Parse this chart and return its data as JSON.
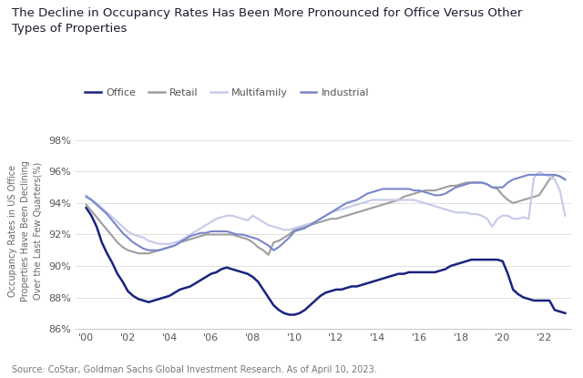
{
  "title": "The Decline in Occupancy Rates Has Been More Pronounced for Office Versus Other\nTypes of Properties",
  "ylabel": "Occupancy Rates in US Office\nProperties Have Been Declining\nOver the Last Few Quarters(%)",
  "source": "Source: CoStar, Goldman Sachs Global Investment Research. As of April 10, 2023.",
  "ylim": [
    86,
    98.5
  ],
  "yticks": [
    86,
    88,
    90,
    92,
    94,
    96,
    98
  ],
  "ytick_labels": [
    "86%",
    "88%",
    "90%",
    "92%",
    "94%",
    "96%",
    "98%"
  ],
  "xticks": [
    2000,
    2002,
    2004,
    2006,
    2008,
    2010,
    2012,
    2014,
    2016,
    2018,
    2020,
    2022
  ],
  "xtick_labels": [
    "'00",
    "'02",
    "'04",
    "'06",
    "'08",
    "'10",
    "'12",
    "'14",
    "'16",
    "'18",
    "'20",
    "'22"
  ],
  "xlim": [
    1999.5,
    2023.3
  ],
  "background_color": "#ffffff",
  "text_color": "#333333",
  "axis_color": "#aaaaaa",
  "grid_color": "#e0e0e0",
  "series": {
    "Office": {
      "color": "#1a237e",
      "linewidth": 1.8,
      "x": [
        2000,
        2000.25,
        2000.5,
        2000.75,
        2001,
        2001.25,
        2001.5,
        2001.75,
        2002,
        2002.25,
        2002.5,
        2002.75,
        2003,
        2003.25,
        2003.5,
        2003.75,
        2004,
        2004.25,
        2004.5,
        2004.75,
        2005,
        2005.25,
        2005.5,
        2005.75,
        2006,
        2006.25,
        2006.5,
        2006.75,
        2007,
        2007.25,
        2007.5,
        2007.75,
        2008,
        2008.25,
        2008.5,
        2008.75,
        2009,
        2009.25,
        2009.5,
        2009.75,
        2010,
        2010.25,
        2010.5,
        2010.75,
        2011,
        2011.25,
        2011.5,
        2011.75,
        2012,
        2012.25,
        2012.5,
        2012.75,
        2013,
        2013.25,
        2013.5,
        2013.75,
        2014,
        2014.25,
        2014.5,
        2014.75,
        2015,
        2015.25,
        2015.5,
        2015.75,
        2016,
        2016.25,
        2016.5,
        2016.75,
        2017,
        2017.25,
        2017.5,
        2017.75,
        2018,
        2018.25,
        2018.5,
        2018.75,
        2019,
        2019.25,
        2019.5,
        2019.75,
        2020,
        2020.25,
        2020.5,
        2020.75,
        2021,
        2021.25,
        2021.5,
        2021.75,
        2022,
        2022.25,
        2022.5,
        2022.75,
        2023
      ],
      "y": [
        93.7,
        93.2,
        92.5,
        91.5,
        90.8,
        90.2,
        89.5,
        89.0,
        88.4,
        88.1,
        87.9,
        87.8,
        87.7,
        87.8,
        87.9,
        88.0,
        88.1,
        88.3,
        88.5,
        88.6,
        88.7,
        88.9,
        89.1,
        89.3,
        89.5,
        89.6,
        89.8,
        89.9,
        89.8,
        89.7,
        89.6,
        89.5,
        89.3,
        89.0,
        88.5,
        88.0,
        87.5,
        87.2,
        87.0,
        86.9,
        86.9,
        87.0,
        87.2,
        87.5,
        87.8,
        88.1,
        88.3,
        88.4,
        88.5,
        88.5,
        88.6,
        88.7,
        88.7,
        88.8,
        88.9,
        89.0,
        89.1,
        89.2,
        89.3,
        89.4,
        89.5,
        89.5,
        89.6,
        89.6,
        89.6,
        89.6,
        89.6,
        89.6,
        89.7,
        89.8,
        90.0,
        90.1,
        90.2,
        90.3,
        90.4,
        90.4,
        90.4,
        90.4,
        90.4,
        90.4,
        90.3,
        89.5,
        88.5,
        88.2,
        88.0,
        87.9,
        87.8,
        87.8,
        87.8,
        87.8,
        87.2,
        87.1,
        87.0
      ]
    },
    "Retail": {
      "color": "#9e9e9e",
      "linewidth": 1.5,
      "x": [
        2000,
        2000.25,
        2000.5,
        2000.75,
        2001,
        2001.25,
        2001.5,
        2001.75,
        2002,
        2002.25,
        2002.5,
        2002.75,
        2003,
        2003.25,
        2003.5,
        2003.75,
        2004,
        2004.25,
        2004.5,
        2004.75,
        2005,
        2005.25,
        2005.5,
        2005.75,
        2006,
        2006.25,
        2006.5,
        2006.75,
        2007,
        2007.25,
        2007.5,
        2007.75,
        2008,
        2008.25,
        2008.5,
        2008.75,
        2009,
        2009.25,
        2009.5,
        2009.75,
        2010,
        2010.25,
        2010.5,
        2010.75,
        2011,
        2011.25,
        2011.5,
        2011.75,
        2012,
        2012.25,
        2012.5,
        2012.75,
        2013,
        2013.25,
        2013.5,
        2013.75,
        2014,
        2014.25,
        2014.5,
        2014.75,
        2015,
        2015.25,
        2015.5,
        2015.75,
        2016,
        2016.25,
        2016.5,
        2016.75,
        2017,
        2017.25,
        2017.5,
        2017.75,
        2018,
        2018.25,
        2018.5,
        2018.75,
        2019,
        2019.25,
        2019.5,
        2019.75,
        2020,
        2020.25,
        2020.5,
        2020.75,
        2021,
        2021.25,
        2021.5,
        2021.75,
        2022,
        2022.25,
        2022.5,
        2022.75,
        2023
      ],
      "y": [
        93.9,
        93.5,
        93.1,
        92.7,
        92.3,
        91.9,
        91.5,
        91.2,
        91.0,
        90.9,
        90.8,
        90.8,
        90.8,
        90.9,
        91.0,
        91.1,
        91.2,
        91.3,
        91.5,
        91.6,
        91.7,
        91.8,
        91.9,
        92.0,
        92.0,
        92.0,
        92.0,
        92.0,
        92.0,
        91.9,
        91.8,
        91.7,
        91.5,
        91.2,
        91.0,
        90.7,
        91.5,
        91.6,
        91.8,
        92.0,
        92.3,
        92.4,
        92.5,
        92.6,
        92.7,
        92.8,
        92.9,
        93.0,
        93.0,
        93.1,
        93.2,
        93.3,
        93.4,
        93.5,
        93.6,
        93.7,
        93.8,
        93.9,
        94.0,
        94.1,
        94.2,
        94.4,
        94.5,
        94.6,
        94.7,
        94.8,
        94.8,
        94.8,
        94.9,
        95.0,
        95.1,
        95.1,
        95.2,
        95.3,
        95.3,
        95.3,
        95.3,
        95.2,
        95.0,
        94.9,
        94.5,
        94.2,
        94.0,
        94.1,
        94.2,
        94.3,
        94.4,
        94.5,
        95.0,
        95.5,
        95.8,
        95.7,
        95.5
      ]
    },
    "Multifamily": {
      "color": "#c5cae9",
      "linewidth": 1.5,
      "x": [
        2000,
        2000.25,
        2000.5,
        2000.75,
        2001,
        2001.25,
        2001.5,
        2001.75,
        2002,
        2002.25,
        2002.5,
        2002.75,
        2003,
        2003.25,
        2003.5,
        2003.75,
        2004,
        2004.25,
        2004.5,
        2004.75,
        2005,
        2005.25,
        2005.5,
        2005.75,
        2006,
        2006.25,
        2006.5,
        2006.75,
        2007,
        2007.25,
        2007.5,
        2007.75,
        2008,
        2008.25,
        2008.5,
        2008.75,
        2009,
        2009.25,
        2009.5,
        2009.75,
        2010,
        2010.25,
        2010.5,
        2010.75,
        2011,
        2011.25,
        2011.5,
        2011.75,
        2012,
        2012.25,
        2012.5,
        2012.75,
        2013,
        2013.25,
        2013.5,
        2013.75,
        2014,
        2014.25,
        2014.5,
        2014.75,
        2015,
        2015.25,
        2015.5,
        2015.75,
        2016,
        2016.25,
        2016.5,
        2016.75,
        2017,
        2017.25,
        2017.5,
        2017.75,
        2018,
        2018.25,
        2018.5,
        2018.75,
        2019,
        2019.25,
        2019.5,
        2019.75,
        2020,
        2020.25,
        2020.5,
        2020.75,
        2021,
        2021.25,
        2021.5,
        2021.75,
        2022,
        2022.25,
        2022.5,
        2022.75,
        2023
      ],
      "y": [
        94.5,
        94.2,
        94.0,
        93.7,
        93.4,
        93.1,
        92.8,
        92.5,
        92.2,
        92.0,
        91.9,
        91.8,
        91.6,
        91.5,
        91.4,
        91.4,
        91.4,
        91.5,
        91.6,
        91.8,
        92.0,
        92.2,
        92.4,
        92.6,
        92.8,
        93.0,
        93.1,
        93.2,
        93.2,
        93.1,
        93.0,
        92.9,
        93.2,
        93.0,
        92.8,
        92.6,
        92.5,
        92.4,
        92.3,
        92.3,
        92.4,
        92.5,
        92.6,
        92.7,
        92.8,
        93.0,
        93.2,
        93.4,
        93.5,
        93.6,
        93.7,
        93.8,
        93.9,
        94.0,
        94.1,
        94.2,
        94.2,
        94.2,
        94.2,
        94.2,
        94.2,
        94.2,
        94.2,
        94.2,
        94.1,
        94.0,
        93.9,
        93.8,
        93.7,
        93.6,
        93.5,
        93.4,
        93.4,
        93.4,
        93.3,
        93.3,
        93.2,
        93.0,
        92.5,
        93.0,
        93.2,
        93.2,
        93.0,
        93.0,
        93.1,
        93.0,
        95.6,
        96.0,
        95.8,
        95.7,
        95.5,
        94.8,
        93.2
      ]
    },
    "Industrial": {
      "color": "#7986cb",
      "linewidth": 1.5,
      "x": [
        2000,
        2000.25,
        2000.5,
        2000.75,
        2001,
        2001.25,
        2001.5,
        2001.75,
        2002,
        2002.25,
        2002.5,
        2002.75,
        2003,
        2003.25,
        2003.5,
        2003.75,
        2004,
        2004.25,
        2004.5,
        2004.75,
        2005,
        2005.25,
        2005.5,
        2005.75,
        2006,
        2006.25,
        2006.5,
        2006.75,
        2007,
        2007.25,
        2007.5,
        2007.75,
        2008,
        2008.25,
        2008.5,
        2008.75,
        2009,
        2009.25,
        2009.5,
        2009.75,
        2010,
        2010.25,
        2010.5,
        2010.75,
        2011,
        2011.25,
        2011.5,
        2011.75,
        2012,
        2012.25,
        2012.5,
        2012.75,
        2013,
        2013.25,
        2013.5,
        2013.75,
        2014,
        2014.25,
        2014.5,
        2014.75,
        2015,
        2015.25,
        2015.5,
        2015.75,
        2016,
        2016.25,
        2016.5,
        2016.75,
        2017,
        2017.25,
        2017.5,
        2017.75,
        2018,
        2018.25,
        2018.5,
        2018.75,
        2019,
        2019.25,
        2019.5,
        2019.75,
        2020,
        2020.25,
        2020.5,
        2020.75,
        2021,
        2021.25,
        2021.5,
        2021.75,
        2022,
        2022.25,
        2022.5,
        2022.75,
        2023
      ],
      "y": [
        94.4,
        94.2,
        93.9,
        93.6,
        93.3,
        92.9,
        92.5,
        92.1,
        91.8,
        91.5,
        91.3,
        91.1,
        91.0,
        91.0,
        91.0,
        91.1,
        91.2,
        91.3,
        91.5,
        91.7,
        91.9,
        92.0,
        92.1,
        92.1,
        92.2,
        92.2,
        92.2,
        92.2,
        92.1,
        92.0,
        92.0,
        91.9,
        91.8,
        91.7,
        91.5,
        91.3,
        91.0,
        91.2,
        91.5,
        91.8,
        92.2,
        92.3,
        92.4,
        92.6,
        92.8,
        93.0,
        93.2,
        93.4,
        93.6,
        93.8,
        94.0,
        94.1,
        94.2,
        94.4,
        94.6,
        94.7,
        94.8,
        94.9,
        94.9,
        94.9,
        94.9,
        94.9,
        94.9,
        94.8,
        94.8,
        94.7,
        94.6,
        94.5,
        94.5,
        94.6,
        94.8,
        95.0,
        95.1,
        95.2,
        95.3,
        95.3,
        95.3,
        95.2,
        95.0,
        95.0,
        95.0,
        95.3,
        95.5,
        95.6,
        95.7,
        95.8,
        95.8,
        95.8,
        95.8,
        95.8,
        95.8,
        95.7,
        95.5
      ]
    }
  },
  "legend_order": [
    "Office",
    "Retail",
    "Multifamily",
    "Industrial"
  ]
}
